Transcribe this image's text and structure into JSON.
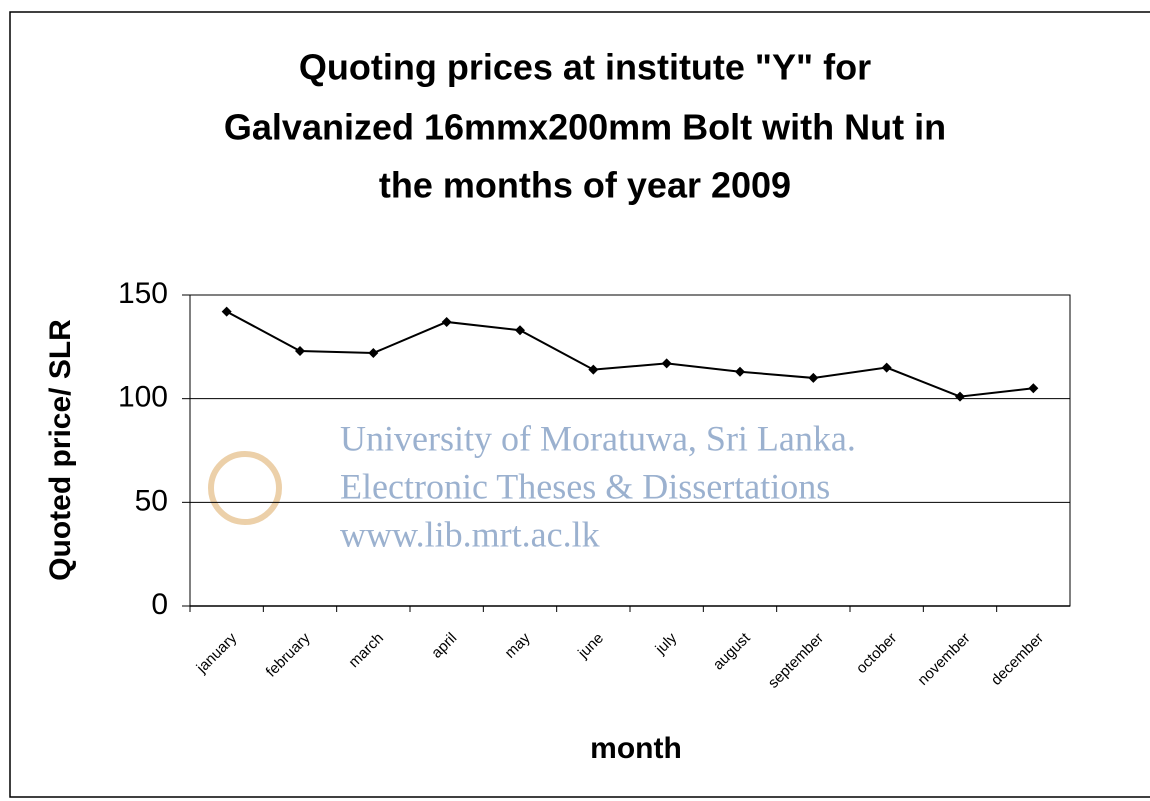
{
  "chart_data": {
    "type": "line",
    "title": [
      "Quoting prices at institute \"Y\"  for",
      "Galvanized 16mmx200mm Bolt with Nut in",
      "the months of year 2009"
    ],
    "x_label": "month",
    "y_label": "Quoted price/ SLR",
    "categories": [
      "january",
      "february",
      "march",
      "april",
      "may",
      "june",
      "july",
      "august",
      "september",
      "october",
      "november",
      "december"
    ],
    "values": [
      142,
      123,
      122,
      137,
      133,
      114,
      117,
      113,
      110,
      115,
      101,
      105
    ],
    "color": "#000000",
    "ylim": [
      0,
      150
    ],
    "yticks": [
      0,
      50,
      100,
      150
    ],
    "grid": true,
    "watermark": [
      "University of Moratuwa, Sri Lanka.",
      "Electronic Theses & Dissertations",
      "www.lib.mrt.ac.lk"
    ]
  }
}
